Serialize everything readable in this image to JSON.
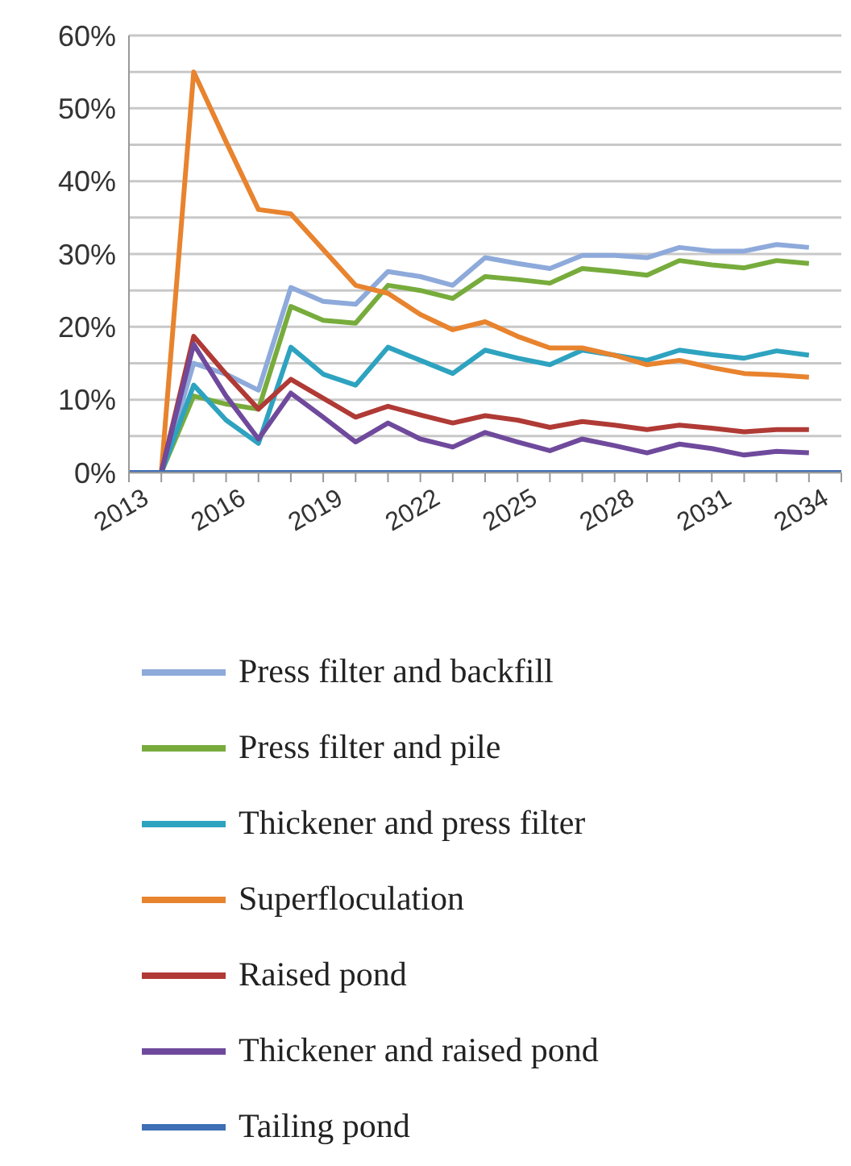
{
  "chart_data": {
    "type": "line",
    "categories": [
      "2013",
      null,
      null,
      "2016",
      null,
      null,
      "2019",
      null,
      null,
      "2022",
      null,
      null,
      "2025",
      null,
      null,
      "2028",
      null,
      null,
      "2031",
      null,
      null,
      "2034",
      null
    ],
    "ylim": [
      0,
      60
    ],
    "yticks": [
      {
        "value": 0,
        "label": "0%"
      },
      {
        "value": 5,
        "label": null
      },
      {
        "value": 10,
        "label": "10%"
      },
      {
        "value": 15,
        "label": null
      },
      {
        "value": 20,
        "label": "20%"
      },
      {
        "value": 25,
        "label": null
      },
      {
        "value": 30,
        "label": "30%"
      },
      {
        "value": 35,
        "label": null
      },
      {
        "value": 40,
        "label": "40%"
      },
      {
        "value": 45,
        "label": null
      },
      {
        "value": 50,
        "label": "50%"
      },
      {
        "value": 55,
        "label": null
      },
      {
        "value": 60,
        "label": "60%"
      }
    ],
    "grid": "y",
    "legend": "bottom",
    "marker": "none",
    "line_style": "solid",
    "series": [
      {
        "name": "Press filter and backfill",
        "color": "#8eaadb",
        "values": [
          0,
          0,
          15,
          13.5,
          11.3,
          25.4,
          23.5,
          23.1,
          27.6,
          26.9,
          25.7,
          29.5,
          28.7,
          28,
          29.8,
          29.8,
          29.5,
          30.9,
          30.4,
          30.4,
          31.3,
          30.9,
          null
        ]
      },
      {
        "name": "Press filter and pile",
        "color": "#77ac3c",
        "values": [
          0,
          0,
          10.5,
          9.4,
          8.7,
          22.8,
          20.9,
          20.5,
          25.7,
          25,
          23.9,
          26.9,
          26.5,
          26,
          28,
          27.6,
          27.1,
          29.1,
          28.5,
          28.1,
          29.1,
          28.7,
          null
        ]
      },
      {
        "name": "Thickener and press filter",
        "color": "#2ea3c0",
        "values": [
          0,
          0,
          12,
          7.2,
          4,
          17.2,
          13.5,
          12,
          17.2,
          15.4,
          13.6,
          16.8,
          15.7,
          14.8,
          16.8,
          16.1,
          15.4,
          16.8,
          16.2,
          15.7,
          16.7,
          16.1,
          null
        ]
      },
      {
        "name": "Superfloculation",
        "color": "#e8832e",
        "values": [
          0,
          0,
          55,
          45.4,
          36.1,
          35.5,
          30.6,
          25.7,
          24.6,
          21.7,
          19.6,
          20.7,
          18.7,
          17.1,
          17.1,
          16.1,
          14.8,
          15.4,
          14.4,
          13.6,
          13.4,
          13.1,
          null
        ]
      },
      {
        "name": "Raised pond",
        "color": "#b03a35",
        "values": [
          0,
          0,
          18.7,
          13.5,
          8.7,
          12.8,
          10.2,
          7.6,
          9.1,
          7.9,
          6.8,
          7.8,
          7.2,
          6.2,
          7,
          6.5,
          5.9,
          6.5,
          6.1,
          5.6,
          5.9,
          5.9,
          null
        ]
      },
      {
        "name": "Thickener and raised pond",
        "color": "#6f4a9c",
        "values": [
          0,
          0,
          17.6,
          10.5,
          4.6,
          10.9,
          7.6,
          4.2,
          6.8,
          4.6,
          3.5,
          5.5,
          4.2,
          3,
          4.6,
          3.7,
          2.7,
          3.9,
          3.3,
          2.4,
          2.9,
          2.7,
          null
        ]
      },
      {
        "name": "Tailing pond",
        "color": "#3f6fb5",
        "values": [
          0,
          0,
          0,
          0,
          0,
          0,
          0,
          0,
          0,
          0,
          0,
          0,
          0,
          0,
          0,
          0,
          0,
          0,
          0,
          0,
          0,
          0,
          0
        ]
      }
    ]
  }
}
